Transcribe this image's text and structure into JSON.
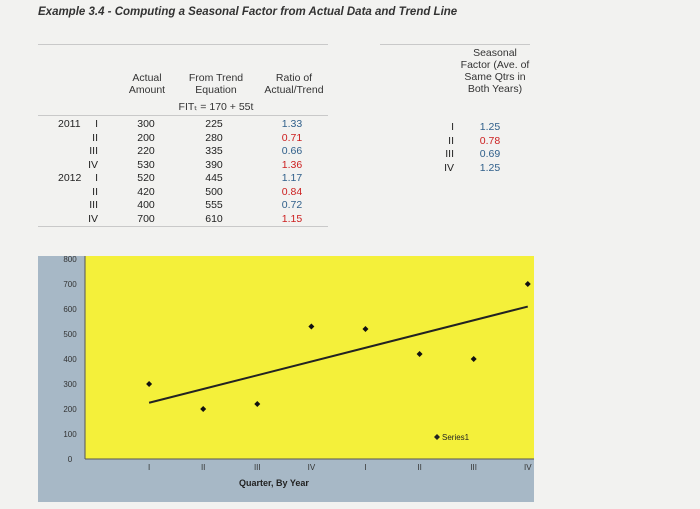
{
  "title": "Example 3.4 - Computing a Seasonal Factor from Actual Data and Trend Line",
  "table": {
    "headers": {
      "actual": [
        "Actual",
        "Amount"
      ],
      "trend": [
        "From Trend",
        "Equation"
      ],
      "formula": "FITₜ = 170 + 55t",
      "ratio": [
        "Ratio of",
        "Actual/Trend"
      ]
    },
    "year_labels": [
      "2011",
      "2012"
    ],
    "rows": [
      {
        "q": "I",
        "actual": "300",
        "trend": "225",
        "ratio": "1.33"
      },
      {
        "q": "II",
        "actual": "200",
        "trend": "280",
        "ratio": "0.71"
      },
      {
        "q": "III",
        "actual": "220",
        "trend": "335",
        "ratio": "0.66"
      },
      {
        "q": "IV",
        "actual": "530",
        "trend": "390",
        "ratio": "1.36"
      },
      {
        "q": "I",
        "actual": "520",
        "trend": "445",
        "ratio": "1.17"
      },
      {
        "q": "II",
        "actual": "420",
        "trend": "500",
        "ratio": "0.84"
      },
      {
        "q": "III",
        "actual": "400",
        "trend": "555",
        "ratio": "0.72"
      },
      {
        "q": "IV",
        "actual": "700",
        "trend": "610",
        "ratio": "1.15"
      }
    ]
  },
  "seasonal": {
    "header": [
      "Seasonal",
      "Factor (Ave. of",
      "Same Qtrs in",
      "Both Years)"
    ],
    "rows": [
      {
        "q": "I",
        "value": "1.25"
      },
      {
        "q": "II",
        "value": "0.78"
      },
      {
        "q": "III",
        "value": "0.69"
      },
      {
        "q": "IV",
        "value": "1.25"
      }
    ]
  },
  "colors": {
    "plot_area": "#f4f03a",
    "chart_bg": "#a7b8c6",
    "red_text": "#cc2020",
    "teal_text": "#2f5f8a"
  },
  "chart_data": {
    "type": "scatter",
    "title": "",
    "xlabel": "Quarter, By Year",
    "ylabel": "",
    "x_tick_labels": [
      "I",
      "II",
      "III",
      "IV",
      "I",
      "II",
      "III",
      "IV"
    ],
    "y_tick_labels": [
      "0",
      "100",
      "200",
      "300",
      "400",
      "500",
      "600",
      "700",
      "800"
    ],
    "ylim": [
      0,
      800
    ],
    "grid": false,
    "legend": {
      "placement": "bottom-right",
      "entries": [
        "Series1"
      ]
    },
    "series": [
      {
        "name": "Series1",
        "x": [
          1,
          2,
          3,
          4,
          5,
          6,
          7,
          8
        ],
        "y": [
          300,
          200,
          220,
          530,
          520,
          420,
          400,
          700
        ]
      }
    ],
    "trend_line": {
      "x": [
        1,
        8
      ],
      "y": [
        225,
        610
      ]
    }
  }
}
